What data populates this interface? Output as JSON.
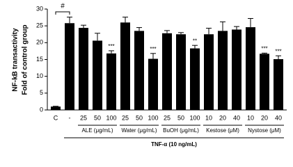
{
  "chart_data": {
    "type": "bar",
    "y_label_lines": [
      "NF-kB transactivity",
      "Fold of control group"
    ],
    "categories": [
      "C",
      "-",
      "25",
      "50",
      "100",
      "25",
      "50",
      "100",
      "25",
      "50",
      "100",
      "10",
      "20",
      "40",
      "10",
      "20",
      "40"
    ],
    "values": [
      1,
      25.8,
      24.4,
      20.6,
      16.8,
      26,
      23.5,
      15.2,
      22.8,
      22.5,
      18.3,
      22.5,
      23.5,
      23.9,
      24.6,
      16.7,
      15.1
    ],
    "errors": [
      0.1,
      1.8,
      0.8,
      2.2,
      0.8,
      1.6,
      1.0,
      1.6,
      0.8,
      0.5,
      0.9,
      1.8,
      2.7,
      0.9,
      2.6,
      0.2,
      1.0
    ],
    "significance": [
      null,
      null,
      null,
      null,
      "***",
      null,
      null,
      "***",
      null,
      null,
      "**",
      null,
      null,
      null,
      null,
      "***",
      "***"
    ],
    "groups": [
      "ALE (μg/mL)",
      "Water (μg/mL)",
      "BuOH (μg/mL)",
      "Kestose (μM)",
      "Nystose (μM)"
    ],
    "treatment": "TNF-α (10 ng/mL)",
    "control_mark": "#",
    "color": "#000000",
    "ylim": [
      0,
      30
    ],
    "yticks": [
      0,
      5,
      10,
      15,
      20,
      25,
      30
    ]
  }
}
